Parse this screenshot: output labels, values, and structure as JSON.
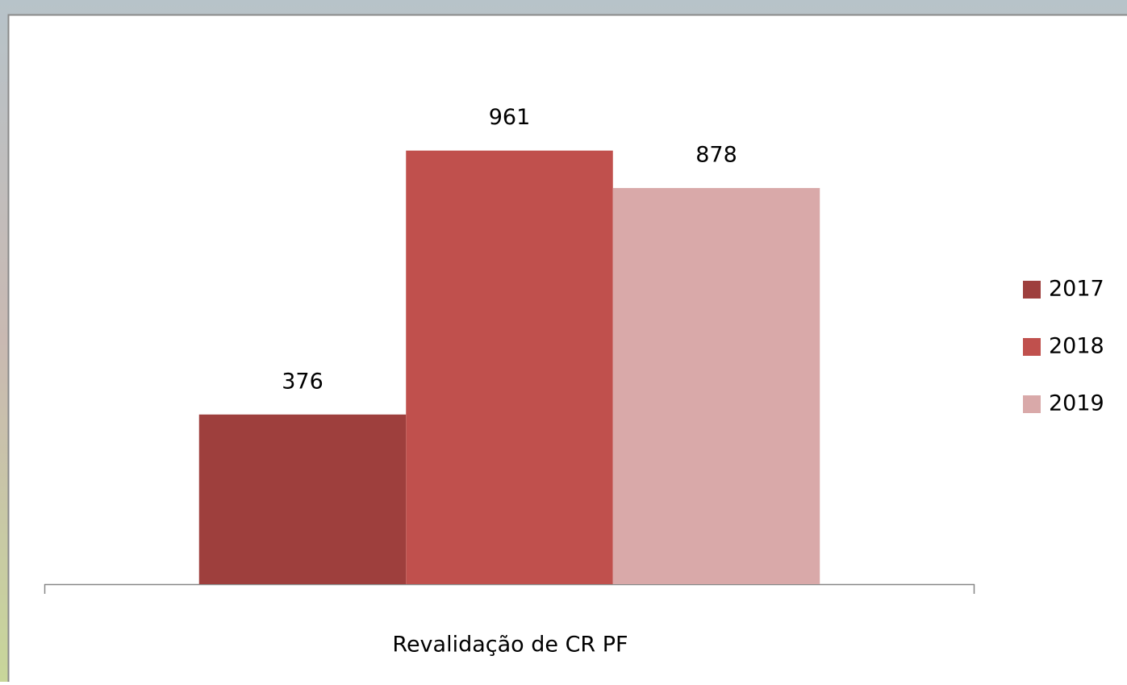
{
  "chart_data": {
    "type": "bar",
    "categories": [
      "Revalidação de CR PF"
    ],
    "series": [
      {
        "name": "2017",
        "color": "#9e3f3d",
        "values": [
          376
        ]
      },
      {
        "name": "2018",
        "color": "#c0504d",
        "values": [
          961
        ]
      },
      {
        "name": "2019",
        "color": "#d9a9a9",
        "values": [
          878
        ]
      }
    ],
    "ylim": [
      0,
      1200
    ],
    "legend": "right"
  }
}
